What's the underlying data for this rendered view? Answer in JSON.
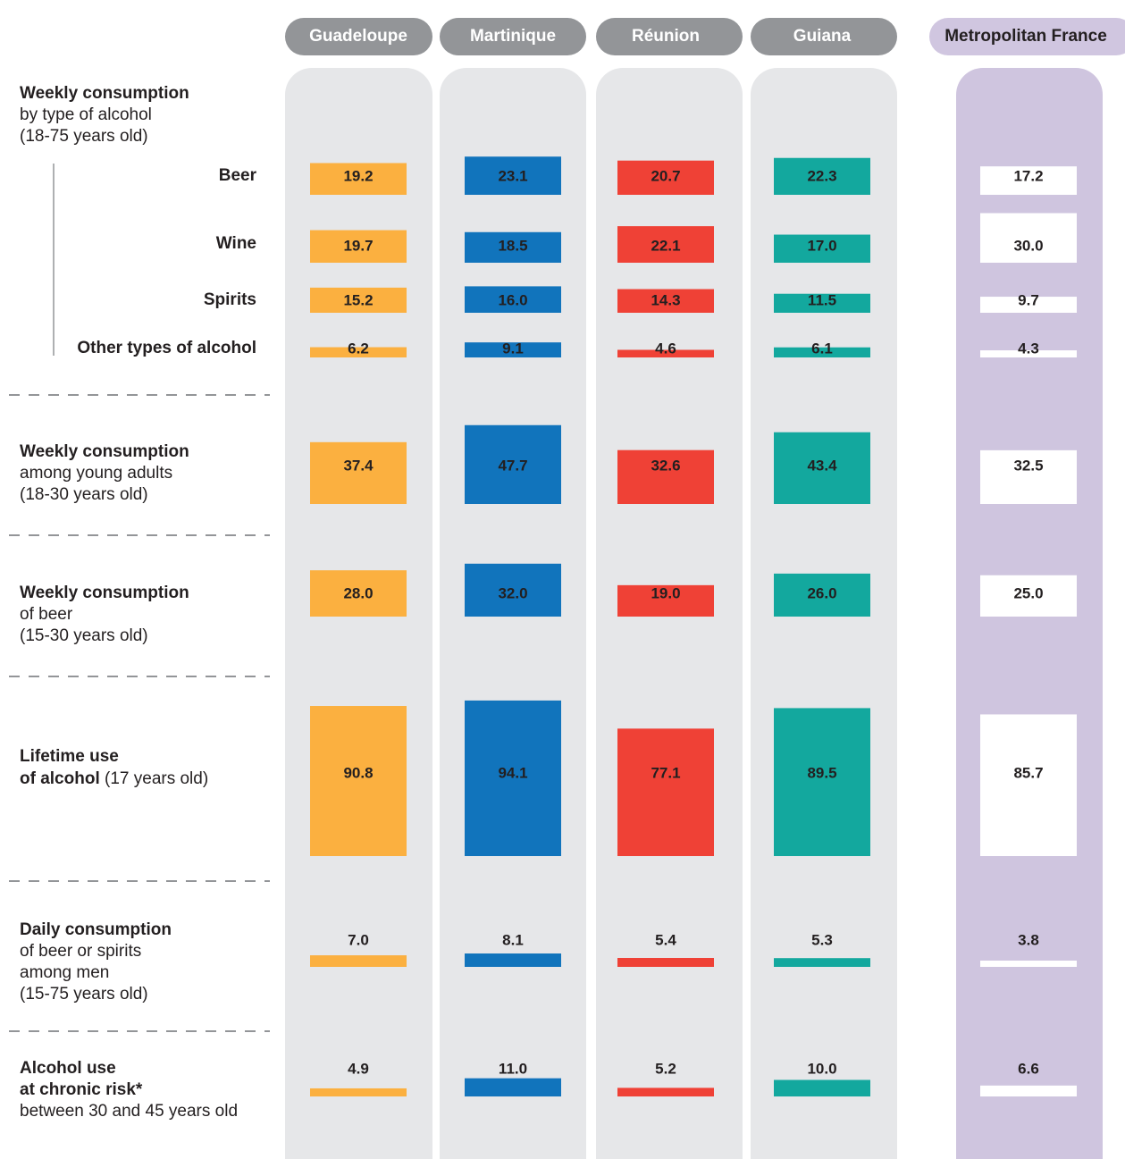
{
  "chart_data": {
    "type": "bar-matrix",
    "categories": [
      "Beer",
      "Wine",
      "Spirits",
      "Other types of alcohol",
      null,
      null,
      null,
      null,
      null
    ],
    "sections": [
      {
        "heading": [
          [
            {
              "text": "Weekly consumption",
              "bold": true
            }
          ],
          [
            {
              "text": "by type of alcohol",
              "bold": false
            }
          ],
          [
            {
              "text": "(18-75 years old)",
              "bold": false
            }
          ]
        ]
      },
      {
        "heading": [
          [
            {
              "text": "Weekly consumption",
              "bold": true
            }
          ],
          [
            {
              "text": "among young adults",
              "bold": false
            }
          ],
          [
            {
              "text": "(18-30 years old)",
              "bold": false
            }
          ]
        ]
      },
      {
        "heading": [
          [
            {
              "text": "Weekly consumption",
              "bold": true
            }
          ],
          [
            {
              "text": "of beer",
              "bold": false
            }
          ],
          [
            {
              "text": "(15-30 years old)",
              "bold": false
            }
          ]
        ]
      },
      {
        "heading": [
          [
            {
              "text": "Lifetime use",
              "bold": true
            }
          ],
          [
            {
              "text": "of alcohol",
              "bold": true
            },
            {
              "text": " (17 years old)",
              "bold": false
            }
          ]
        ]
      },
      {
        "heading": [
          [
            {
              "text": "Daily consumption",
              "bold": true
            }
          ],
          [
            {
              "text": "of beer or spirits",
              "bold": false
            }
          ],
          [
            {
              "text": "among men",
              "bold": false
            }
          ],
          [
            {
              "text": "(15-75 years old)",
              "bold": false
            }
          ]
        ]
      },
      {
        "heading": [
          [
            {
              "text": "Alcohol use",
              "bold": true
            }
          ],
          [
            {
              "text": "at chronic risk*",
              "bold": true
            }
          ],
          [
            {
              "text": "between 30 and 45 years old",
              "bold": false
            }
          ]
        ]
      }
    ],
    "series": [
      {
        "name": "Guadeloupe",
        "color": "#fbb040",
        "values": [
          19.2,
          19.7,
          15.2,
          6.2,
          37.4,
          28.0,
          90.8,
          7.0,
          4.9
        ],
        "value_labels": [
          "19.2",
          "19.7",
          "15.2",
          "6.2",
          "37.4",
          "28.0",
          "90.8",
          "7.0",
          "4.9"
        ]
      },
      {
        "name": "Martinique",
        "color": "#1174bc",
        "values": [
          23.1,
          18.5,
          16.0,
          9.1,
          47.7,
          32.0,
          94.1,
          8.1,
          11.0
        ],
        "value_labels": [
          "23.1",
          "18.5",
          "16.0",
          "9.1",
          "47.7",
          "32.0",
          "94.1",
          "8.1",
          "11.0"
        ]
      },
      {
        "name": "Réunion",
        "color": "#ef4136",
        "values": [
          20.7,
          22.1,
          14.3,
          4.6,
          32.6,
          19.0,
          77.1,
          5.4,
          5.2
        ],
        "value_labels": [
          "20.7",
          "22.1",
          "14.3",
          "4.6",
          "32.6",
          "19.0",
          "77.1",
          "5.4",
          "5.2"
        ]
      },
      {
        "name": "Guiana",
        "color": "#13a89e",
        "values": [
          22.3,
          17.0,
          11.5,
          6.1,
          43.4,
          26.0,
          89.5,
          5.3,
          10.0
        ],
        "value_labels": [
          "22.3",
          "17.0",
          "11.5",
          "6.1",
          "43.4",
          "26.0",
          "89.5",
          "5.3",
          "10.0"
        ]
      },
      {
        "name": "Metropolitan France",
        "color": "#ffffff",
        "values": [
          17.2,
          30.0,
          9.7,
          4.3,
          32.5,
          25.0,
          85.7,
          3.8,
          6.6
        ],
        "value_labels": [
          "17.2",
          "30.0",
          "9.7",
          "4.3",
          "32.5",
          "25.0",
          "85.7",
          "3.8",
          "6.6"
        ]
      }
    ]
  }
}
